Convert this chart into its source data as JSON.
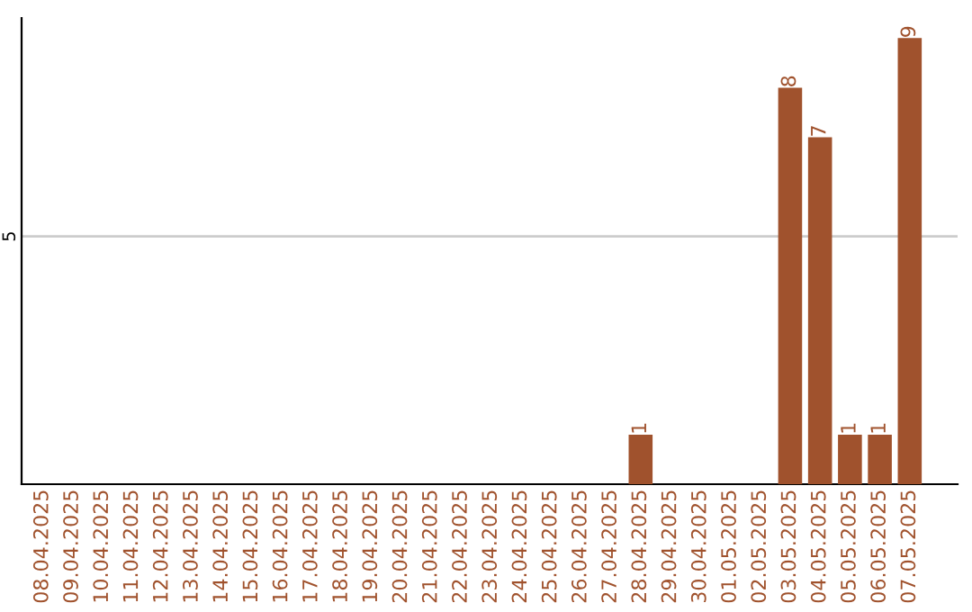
{
  "chart_data": {
    "type": "bar",
    "categories": [
      "08.04.2025",
      "09.04.2025",
      "10.04.2025",
      "11.04.2025",
      "12.04.2025",
      "13.04.2025",
      "14.04.2025",
      "15.04.2025",
      "16.04.2025",
      "17.04.2025",
      "18.04.2025",
      "19.04.2025",
      "20.04.2025",
      "21.04.2025",
      "22.04.2025",
      "23.04.2025",
      "24.04.2025",
      "25.04.2025",
      "26.04.2025",
      "27.04.2025",
      "28.04.2025",
      "29.04.2025",
      "30.04.2025",
      "01.05.2025",
      "02.05.2025",
      "03.05.2025",
      "04.05.2025",
      "05.05.2025",
      "06.05.2025",
      "07.05.2025"
    ],
    "values": [
      null,
      null,
      null,
      null,
      null,
      null,
      null,
      null,
      null,
      null,
      null,
      null,
      null,
      null,
      null,
      null,
      null,
      null,
      null,
      null,
      1,
      null,
      null,
      null,
      null,
      8,
      7,
      1,
      1,
      9
    ],
    "data_labels": true,
    "color": "#a0522d",
    "ref_lines": [
      {
        "axis": "y",
        "value": 5,
        "label": "5",
        "color": "#cccccc"
      }
    ]
  }
}
